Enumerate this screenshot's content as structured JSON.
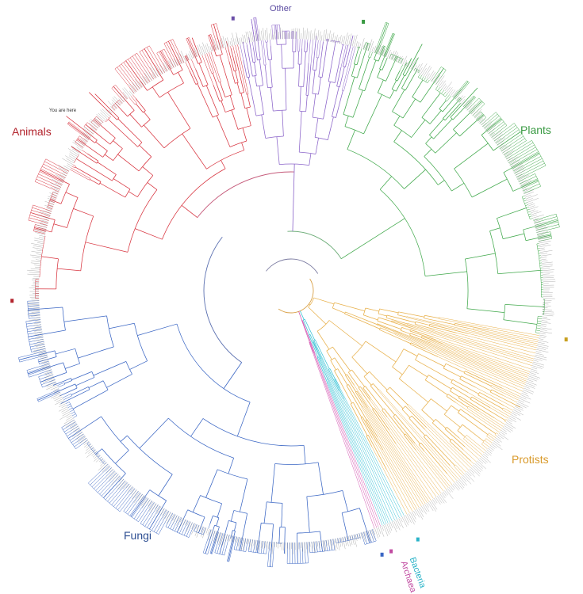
{
  "labels": {
    "other": "Other",
    "plants": "Plants",
    "animals": "Animals",
    "you_are_here": "You are here",
    "protists": "Protists",
    "fungi": "Fungi",
    "bacteria": "Bacteria",
    "archaea": "Archaea"
  },
  "clades": [
    {
      "key": "other",
      "color": "#8a63c9"
    },
    {
      "key": "plants",
      "color": "#3fa84a"
    },
    {
      "key": "protists",
      "color": "#e8b04a"
    },
    {
      "key": "bacteria",
      "color": "#39c3d6"
    },
    {
      "key": "archaea",
      "color": "#d557b2"
    },
    {
      "key": "fungi",
      "color": "#3a66c4"
    },
    {
      "key": "animals",
      "color": "#d8343f"
    }
  ],
  "colors": {
    "tips": "#8c8c8c",
    "other_label": "#5a4aa0",
    "plants_label": "#3a9a43",
    "animals_label": "#b3242d",
    "protists_label": "#d99a2b",
    "fungi_label": "#2e4f92",
    "bacteria_label": "#2ab3c8",
    "archaea_label": "#c04aa0"
  }
}
